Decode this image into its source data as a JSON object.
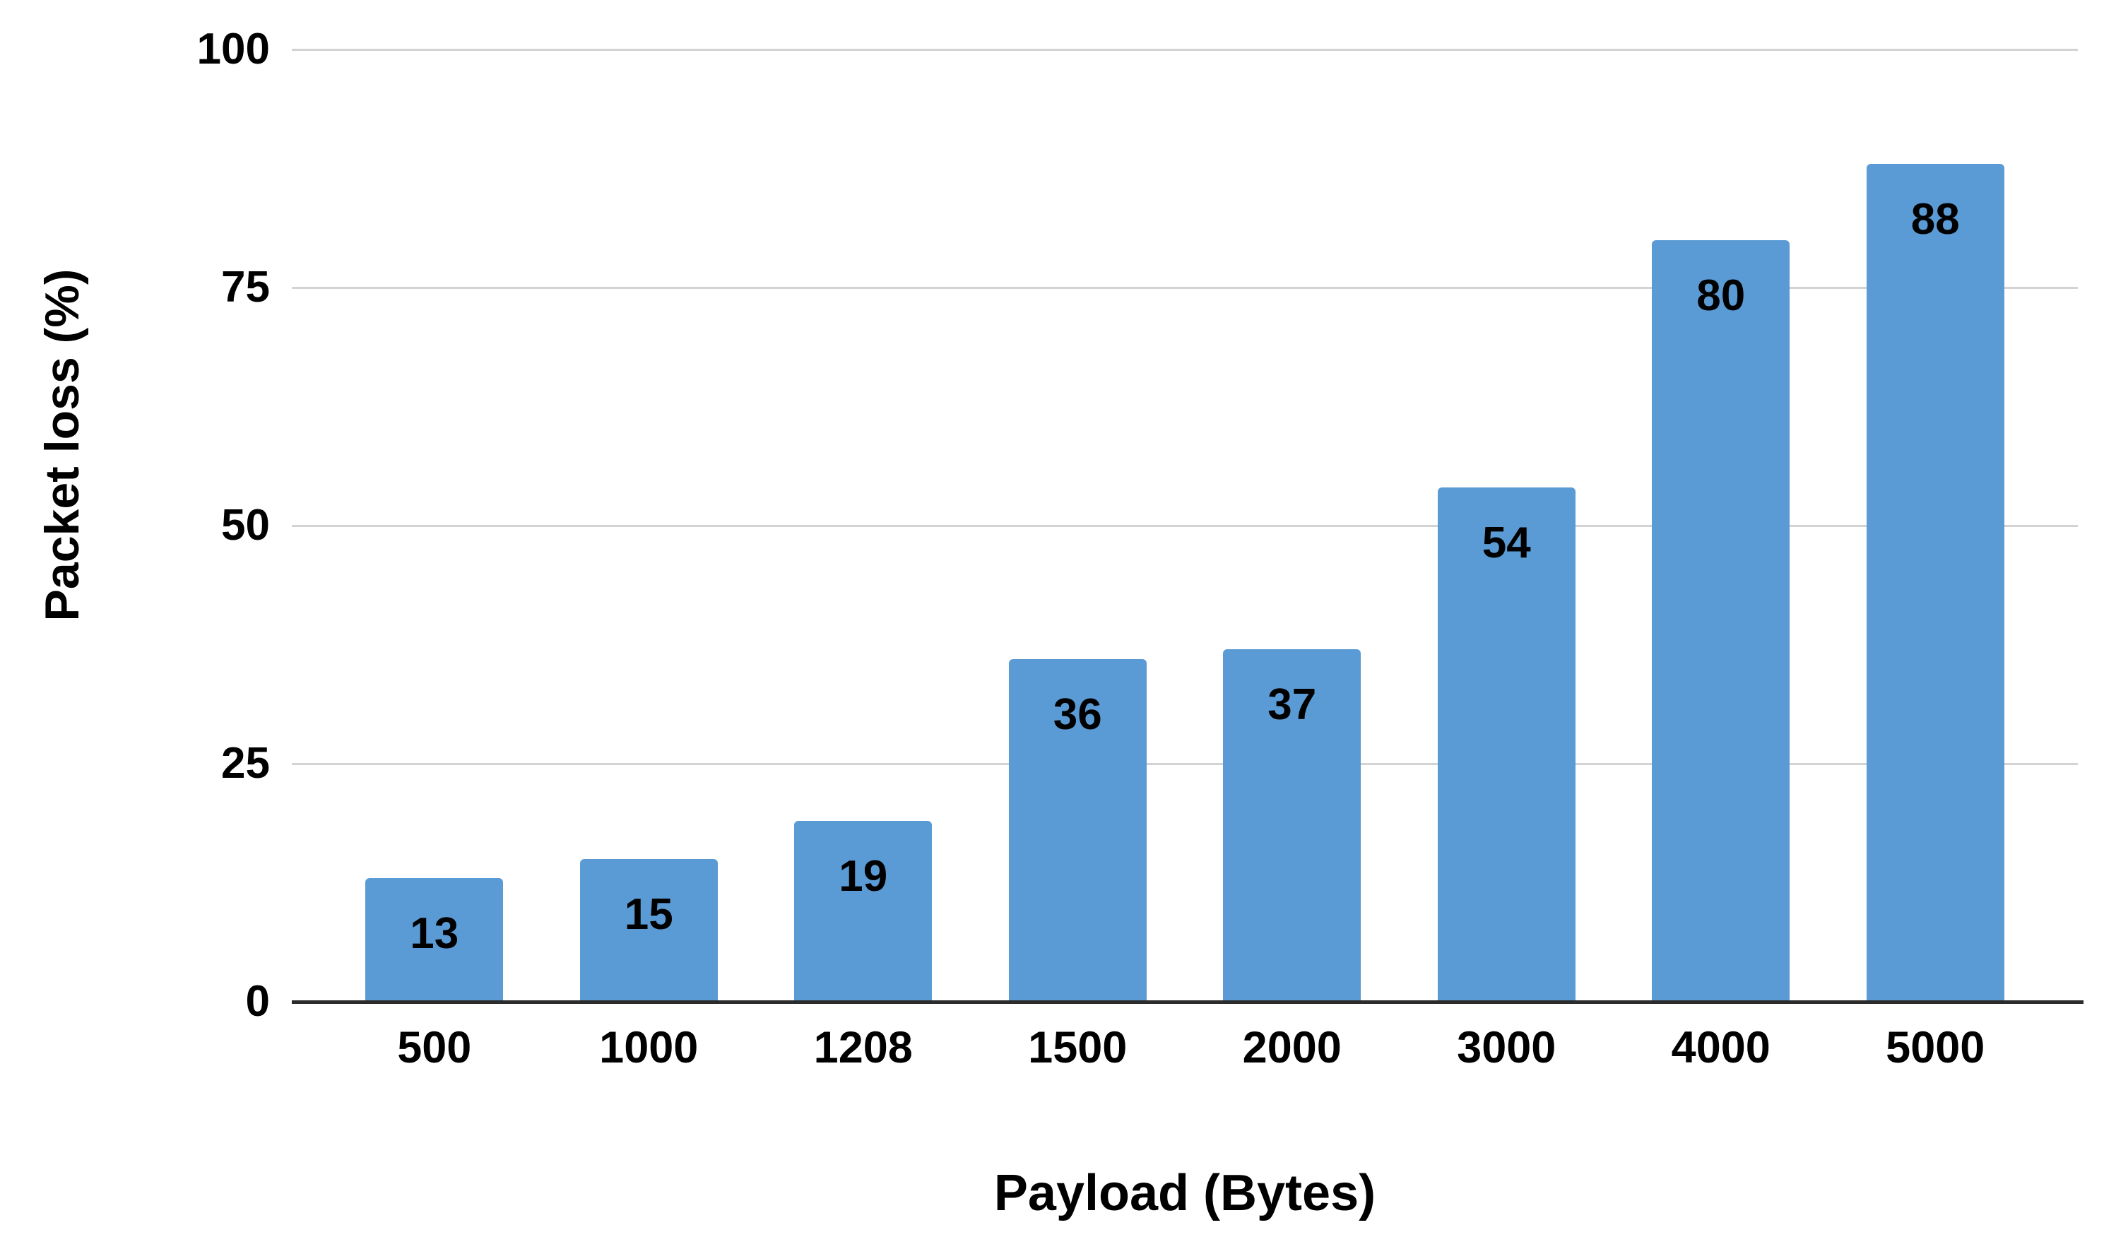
{
  "figure": {
    "background": "#ffffff",
    "bar_color": "#5B9BD5",
    "gridline_color": "#D3D3D3",
    "axis_line_color": "#2B2B2B",
    "text_color": "#000000"
  },
  "chart_data": {
    "type": "bar",
    "title": "",
    "categories": [
      "500",
      "1000",
      "1208",
      "1500",
      "2000",
      "3000",
      "4000",
      "5000"
    ],
    "values": [
      13,
      15,
      19,
      36,
      37,
      54,
      80,
      88
    ],
    "data_labels": [
      13,
      15,
      19,
      36,
      37,
      54,
      80,
      88
    ],
    "data_label_position": "inside-end",
    "xlabel": "Payload (Bytes)",
    "ylabel": "Packet loss (%)",
    "ylim": [
      0,
      100
    ],
    "yticks": [
      0,
      25,
      50,
      75,
      100
    ],
    "grid": "horizontal",
    "legend": "none"
  }
}
